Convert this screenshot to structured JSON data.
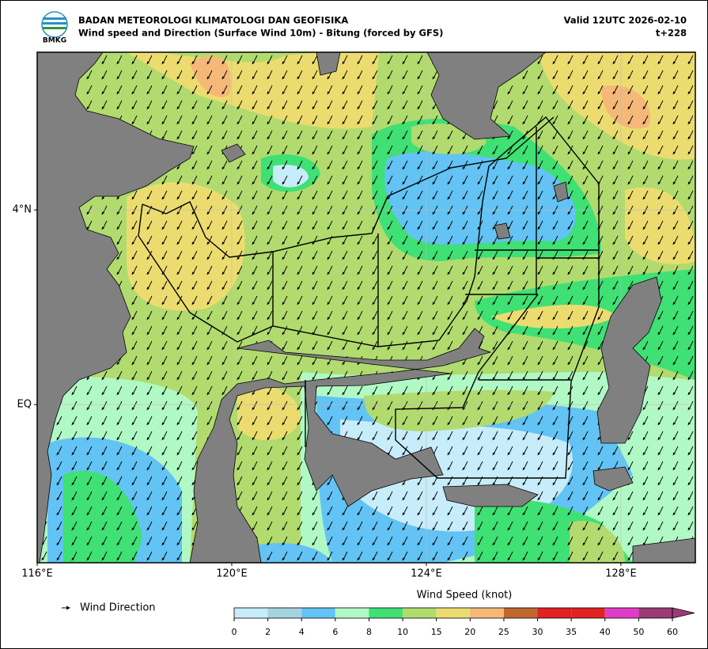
{
  "header": {
    "logo_text": "BMKG",
    "title": "BADAN METEOROLOGI KLIMATOLOGI DAN GEOFISIKA",
    "subtitle": "Wind speed and Direction (Surface Wind 10m) - Bitung (forced by GFS)",
    "valid": "Valid 12UTC 2026-02-10",
    "lead": "t+228"
  },
  "map": {
    "xlim": [
      116,
      129.53
    ],
    "ylim": [
      -3.25,
      7.24
    ],
    "xticks": [
      {
        "value": 116,
        "label": "116°E"
      },
      {
        "value": 120,
        "label": "120°E"
      },
      {
        "value": 124,
        "label": "124°E"
      },
      {
        "value": 128,
        "label": "128°E"
      }
    ],
    "yticks": [
      {
        "value": 4,
        "label": "4°N"
      },
      {
        "value": 0,
        "label": "EQ"
      }
    ],
    "grid": true
  },
  "legend": {
    "label": "Wind Direction"
  },
  "colorbar": {
    "title": "Wind Speed (knot)",
    "levels": [
      0,
      2,
      4,
      6,
      8,
      10,
      15,
      20,
      25,
      30,
      35,
      40,
      50,
      60
    ],
    "colors": [
      "#c7ecfa",
      "#a3d3e0",
      "#62c3f4",
      "#b0f9c4",
      "#3fe074",
      "#b1db6e",
      "#ecdc70",
      "#f5b879",
      "#c0662f",
      "#e02222",
      "#e02222",
      "#e03cc8",
      "#9c3a78"
    ],
    "extend_color": "#9c3a78"
  }
}
